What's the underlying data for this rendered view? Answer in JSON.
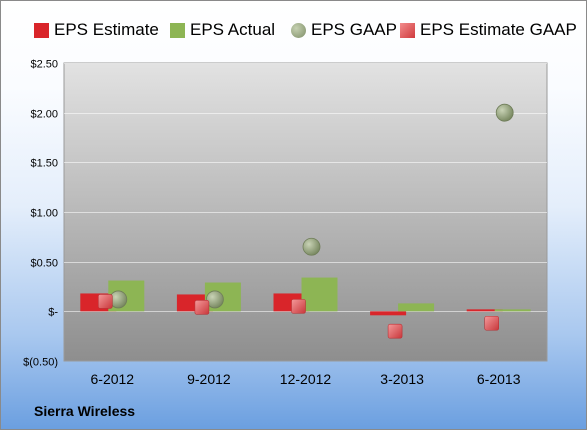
{
  "chart_data": {
    "type": "bar",
    "categories": [
      "6-2012",
      "9-2012",
      "12-2012",
      "3-2013",
      "6-2013"
    ],
    "series": [
      {
        "name": "EPS Estimate",
        "kind": "bar",
        "color": "#d9252a",
        "values": [
          0.18,
          0.17,
          0.18,
          -0.04,
          0.02
        ]
      },
      {
        "name": "EPS Actual",
        "kind": "bar",
        "color": "#8db554",
        "values": [
          0.31,
          0.29,
          0.34,
          0.08,
          0.02
        ]
      },
      {
        "name": "EPS GAAP",
        "kind": "marker",
        "color": "#8e9e76",
        "values": [
          0.12,
          0.12,
          0.65,
          null,
          2.0
        ]
      },
      {
        "name": "EPS Estimate GAAP",
        "kind": "marker",
        "color": "#e0575a",
        "values": [
          0.1,
          0.04,
          0.05,
          -0.2,
          -0.12
        ]
      }
    ],
    "ylim": [
      -0.5,
      2.5
    ],
    "yticks": [
      {
        "value": 2.5,
        "label": "$2.50"
      },
      {
        "value": 2.0,
        "label": "$2.00"
      },
      {
        "value": 1.5,
        "label": "$1.50"
      },
      {
        "value": 1.0,
        "label": "$1.00"
      },
      {
        "value": 0.5,
        "label": "$0.50"
      },
      {
        "value": 0.0,
        "label": "$-"
      },
      {
        "value": -0.5,
        "label": "$(0.50)"
      }
    ],
    "grid": true,
    "legend_position": "top"
  },
  "footer": {
    "company": "Sierra Wireless"
  }
}
